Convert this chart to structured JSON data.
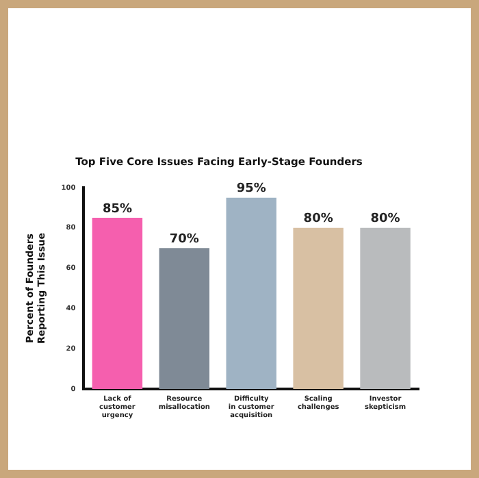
{
  "chart_data": {
    "type": "bar",
    "title": "Top Five Core Issues Facing Early-Stage Founders",
    "ylabel": "Percent of Founders Reporting This Issue",
    "categories": [
      "Lack of customer urgency",
      "Resource misallocation",
      "Difficulty in customer acquisition",
      "Scaling challenges",
      "Investor skepticism"
    ],
    "values": [
      85,
      70,
      95,
      80,
      80
    ],
    "colors": [
      "#f55fae",
      "#7f8a96",
      "#9fb3c4",
      "#d8c0a3",
      "#b9bbbd"
    ],
    "value_labels": [
      "85%",
      "70%",
      "95%",
      "80%",
      "80%"
    ],
    "ylim": [
      0,
      100
    ],
    "yticks": [
      0,
      20,
      40,
      60,
      80,
      100
    ],
    "grid": false,
    "legend": false
  }
}
